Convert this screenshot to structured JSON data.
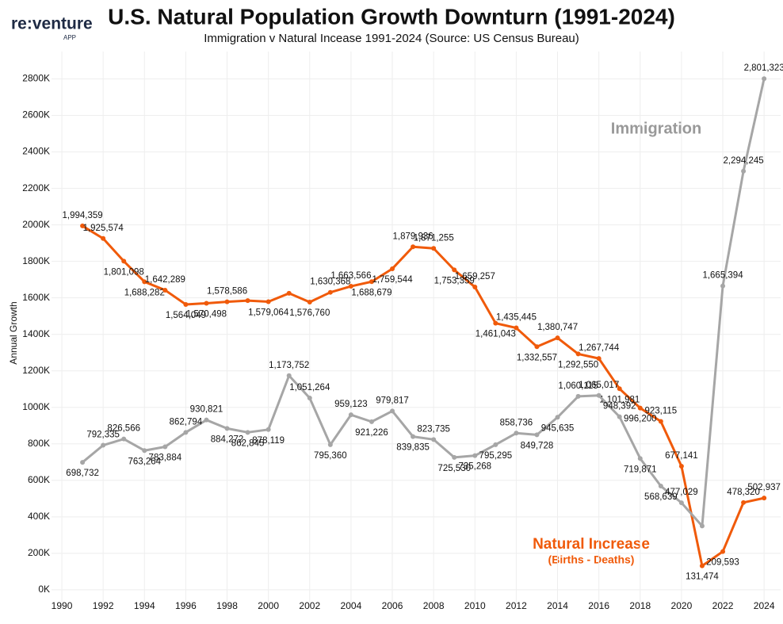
{
  "logo": {
    "name": "re:venture",
    "sub": "APP"
  },
  "chart_data": {
    "type": "line",
    "title": "U.S. Natural Population Growth Downturn (1991-2024)",
    "subtitle": "Immigration v Natural Incease 1991-2024 (Source: US Census Bureau)",
    "y_label": "Annual Growth",
    "annotations": [
      {
        "text": "Immigration",
        "color": "#999999"
      },
      {
        "text": "Natural Increase",
        "color": "#f05a0a"
      },
      {
        "text": "(Births - Deaths)",
        "color": "#f05a0a"
      }
    ],
    "x": [
      1991,
      1992,
      1993,
      1994,
      1995,
      1996,
      1997,
      1998,
      1999,
      2000,
      2001,
      2002,
      2003,
      2004,
      2005,
      2006,
      2007,
      2008,
      2009,
      2010,
      2011,
      2012,
      2013,
      2014,
      2015,
      2016,
      2017,
      2018,
      2019,
      2020,
      2021,
      2022,
      2023,
      2024
    ],
    "xlim": [
      1989.5,
      2024.8
    ],
    "xticks": [
      1990,
      1992,
      1994,
      1996,
      1998,
      2000,
      2002,
      2004,
      2006,
      2008,
      2010,
      2012,
      2014,
      2016,
      2018,
      2020,
      2022,
      2024
    ],
    "ylim": [
      -70000,
      2950000
    ],
    "yticks": [
      {
        "value": 0,
        "label": "0K"
      },
      {
        "value": 200000,
        "label": "200K"
      },
      {
        "value": 400000,
        "label": "400K"
      },
      {
        "value": 600000,
        "label": "600K"
      },
      {
        "value": 800000,
        "label": "800K"
      },
      {
        "value": 1000000,
        "label": "1000K"
      },
      {
        "value": 1200000,
        "label": "1200K"
      },
      {
        "value": 1400000,
        "label": "1400K"
      },
      {
        "value": 1600000,
        "label": "1600K"
      },
      {
        "value": 1800000,
        "label": "1800K"
      },
      {
        "value": 2000000,
        "label": "2000K"
      },
      {
        "value": 2200000,
        "label": "2200K"
      },
      {
        "value": 2400000,
        "label": "2400K"
      },
      {
        "value": 2600000,
        "label": "2600K"
      },
      {
        "value": 2800000,
        "label": "2800K"
      }
    ],
    "grid": true,
    "series": [
      {
        "name": "Natural Increase",
        "color": "#f05a0a",
        "values": [
          1994359,
          1925574,
          1801098,
          1688282,
          1642289,
          1564049,
          1570498,
          1578586,
          1585000,
          1579064,
          1625000,
          1576760,
          1630368,
          1663566,
          1688679,
          1759544,
          1879936,
          1871255,
          1753359,
          1659257,
          1461043,
          1435445,
          1332557,
          1380747,
          1292550,
          1267744,
          1101981,
          996200,
          923115,
          677141,
          131474,
          209593,
          478320,
          502937
        ],
        "value_labels": [
          "1,994,359",
          "1,925,574",
          "1,801,098",
          "1,688,282",
          "1,642,289",
          "1,564,049",
          "1,570,498",
          "1,578,586",
          null,
          "1,579,064",
          null,
          "1,576,760",
          "1,630,368",
          "1,663,566",
          "1,688,679",
          "1,759,544",
          "1,879,936",
          "1,871,255",
          "1,753,359",
          "1,659,257",
          "1,461,043",
          "1,435,445",
          "1,332,557",
          "1,380,747",
          "1,292,550",
          "1,267,744",
          "1,101,981",
          "996,200",
          "923,115",
          "677,141",
          "131,474",
          "209,593",
          "478,320",
          "502,937"
        ]
      },
      {
        "name": "Immigration",
        "color": "#a6a6a6",
        "values": [
          698732,
          792335,
          826566,
          763264,
          783884,
          862794,
          930821,
          884272,
          862845,
          878119,
          1173752,
          1051264,
          795360,
          959123,
          921226,
          979817,
          839835,
          823735,
          725530,
          735268,
          795295,
          858736,
          849728,
          945635,
          1060115,
          1065017,
          948392,
          719871,
          568639,
          477029,
          350000,
          1665394,
          2294245,
          2801323
        ],
        "value_labels": [
          "698,732",
          "792,335",
          "826,566",
          "763,264",
          "783,884",
          "862,794",
          "930,821",
          "884,272",
          "862,845",
          "878,119",
          "1,173,752",
          "1,051,264",
          "795,360",
          "959,123",
          "921,226",
          "979,817",
          "839,835",
          "823,735",
          "725,530",
          "735,268",
          "795,295",
          "858,736",
          "849,728",
          "945,635",
          "1,060,115",
          "1,065,017",
          "948,392",
          "719,871",
          "568,639",
          "477,029",
          null,
          "1,665,394",
          "2,294,245",
          "2,801,323"
        ]
      }
    ]
  }
}
